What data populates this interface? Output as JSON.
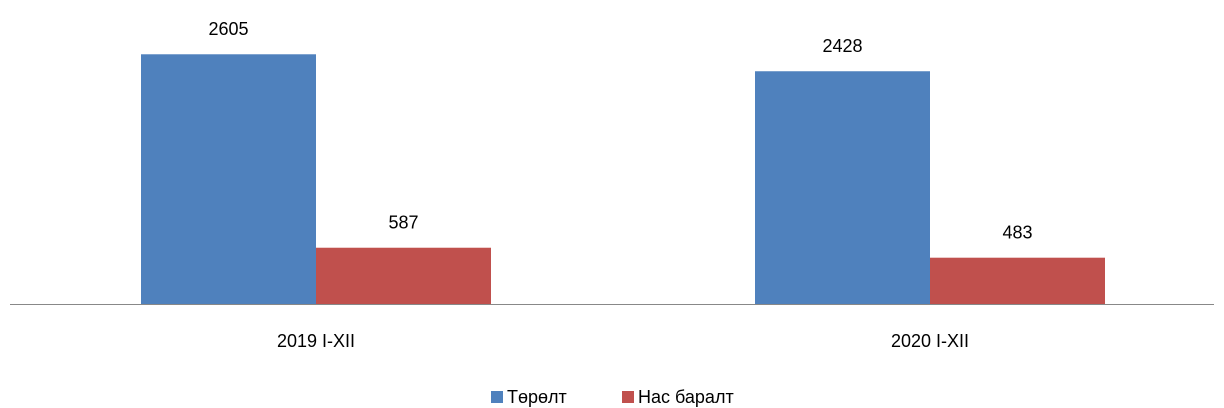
{
  "chart_data": {
    "type": "bar",
    "categories": [
      "2019 I-XII",
      "2020 I-XII"
    ],
    "series": [
      {
        "name": "Төрөлт",
        "color": "#4f81bd",
        "values": [
          2605,
          2428
        ]
      },
      {
        "name": "Нас баралт",
        "color": "#c0504d",
        "values": [
          587,
          483
        ]
      }
    ],
    "ylim": [
      0,
      2900
    ],
    "legend": "bottom"
  }
}
